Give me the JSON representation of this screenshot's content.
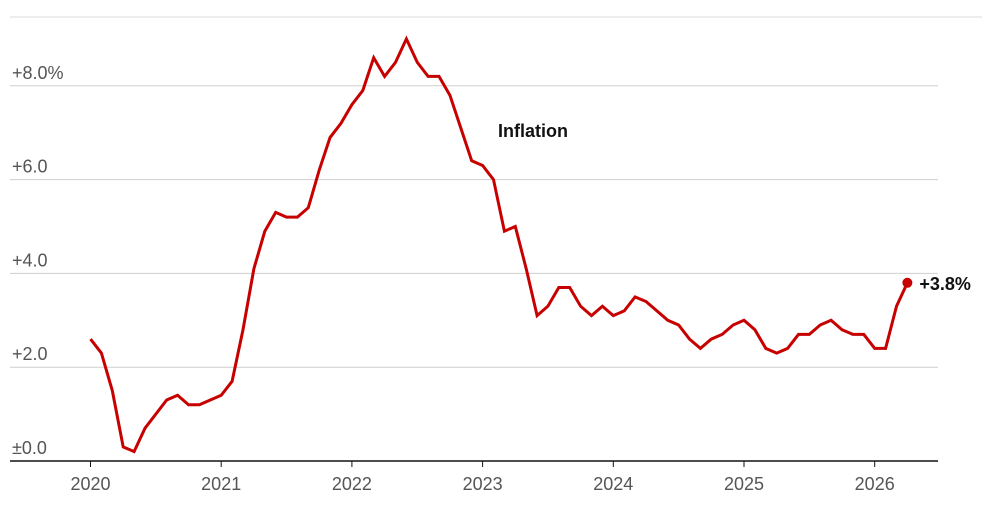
{
  "chart_data": {
    "type": "line",
    "title": "",
    "xlabel": "",
    "ylabel": "",
    "ylim": [
      0,
      9.5
    ],
    "grid": true,
    "x_tick_labels": [
      "2020",
      "2021",
      "2022",
      "2023",
      "2024",
      "2025",
      "2026"
    ],
    "y_ticks": [
      {
        "value": 0,
        "label": "±0.0"
      },
      {
        "value": 2,
        "label": "+2.0"
      },
      {
        "value": 4,
        "label": "+4.0"
      },
      {
        "value": 6,
        "label": "+6.0"
      },
      {
        "value": 8,
        "label": "+8.0%"
      }
    ],
    "series_label": "Inflation",
    "end_label": "+3.8%",
    "series": [
      {
        "color": "#c70000",
        "x": [
          "2020-01",
          "2020-02",
          "2020-03",
          "2020-04",
          "2020-05",
          "2020-06",
          "2020-07",
          "2020-08",
          "2020-09",
          "2020-10",
          "2020-11",
          "2020-12",
          "2021-01",
          "2021-02",
          "2021-03",
          "2021-04",
          "2021-05",
          "2021-06",
          "2021-07",
          "2021-08",
          "2021-09",
          "2021-10",
          "2021-11",
          "2021-12",
          "2022-01",
          "2022-02",
          "2022-03",
          "2022-04",
          "2022-05",
          "2022-06",
          "2022-07",
          "2022-08",
          "2022-09",
          "2022-10",
          "2022-11",
          "2022-12",
          "2023-01",
          "2023-02",
          "2023-03",
          "2023-04",
          "2023-05",
          "2023-06",
          "2023-07",
          "2023-08",
          "2023-09",
          "2023-10",
          "2023-11",
          "2023-12",
          "2024-01",
          "2024-02",
          "2024-03",
          "2024-04",
          "2024-05",
          "2024-06",
          "2024-07",
          "2024-08",
          "2024-09",
          "2024-10",
          "2024-11",
          "2024-12",
          "2025-01",
          "2025-02",
          "2025-03",
          "2025-04",
          "2025-05",
          "2025-06",
          "2025-07",
          "2025-08",
          "2025-09",
          "2025-10",
          "2025-11",
          "2025-12",
          "2026-01",
          "2026-02",
          "2026-03",
          "2026-04"
        ],
        "values": [
          2.6,
          2.3,
          1.5,
          0.3,
          0.2,
          0.7,
          1.0,
          1.3,
          1.4,
          1.2,
          1.2,
          1.3,
          1.4,
          1.7,
          2.8,
          4.1,
          4.9,
          5.3,
          5.2,
          5.2,
          5.4,
          6.2,
          6.9,
          7.2,
          7.6,
          7.9,
          8.6,
          8.2,
          8.5,
          9.0,
          8.5,
          8.2,
          8.2,
          7.8,
          7.1,
          6.4,
          6.3,
          6.0,
          4.9,
          5.0,
          4.1,
          3.1,
          3.3,
          3.7,
          3.7,
          3.3,
          3.1,
          3.3,
          3.1,
          3.2,
          3.5,
          3.4,
          3.2,
          3.0,
          2.9,
          2.6,
          2.4,
          2.6,
          2.7,
          2.9,
          3.0,
          2.8,
          2.4,
          2.3,
          2.4,
          2.7,
          2.7,
          2.9,
          3.0,
          2.8,
          2.7,
          2.7,
          2.4,
          2.4,
          3.3,
          3.8
        ]
      }
    ]
  }
}
